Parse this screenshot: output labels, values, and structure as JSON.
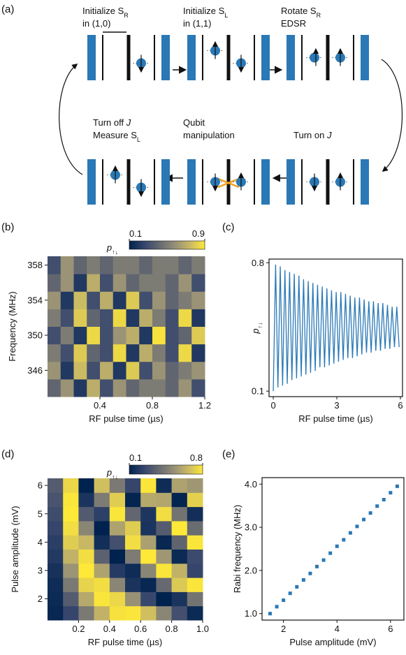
{
  "figure_a": {
    "panel_label": "(a)",
    "steps": [
      {
        "lines": [
          [
            {
              "text": "Initialize S"
            },
            {
              "sub": "R"
            }
          ],
          [
            {
              "text": "in (1,0)"
            }
          ]
        ]
      },
      {
        "lines": [
          [
            {
              "text": "Initialize S"
            },
            {
              "sub": "L"
            }
          ],
          [
            {
              "text": "in (1,1)"
            }
          ]
        ]
      },
      {
        "lines": [
          [
            {
              "text": "Rotate S"
            },
            {
              "sub": "R"
            }
          ],
          [
            {
              "text": "EDSR"
            }
          ]
        ]
      },
      {
        "lines": [
          [
            {
              "text": "Turn on "
            },
            {
              "italic": "J"
            }
          ]
        ]
      },
      {
        "lines": [
          [
            {
              "text": "Qubit"
            }
          ],
          [
            {
              "text": "manipulation"
            }
          ]
        ]
      },
      {
        "lines": [
          [
            {
              "text": "Turn off "
            },
            {
              "italic": "J"
            }
          ],
          [
            {
              "text": "Measure S"
            },
            {
              "sub": "L"
            }
          ]
        ]
      }
    ]
  },
  "chart_data": [
    {
      "type": "heatmap",
      "panel_label": "(b)",
      "xlabel": "RF pulse time (µs)",
      "ylabel": "Frequency (MHz)",
      "x": [
        0.05,
        0.15,
        0.25,
        0.35,
        0.45,
        0.55,
        0.65,
        0.75,
        0.85,
        0.95,
        1.05,
        1.15
      ],
      "y": [
        344,
        346,
        348,
        350,
        352,
        354,
        356,
        358
      ],
      "z": [
        [
          0.4,
          0.6,
          0.2,
          0.7,
          0.3,
          0.6,
          0.4,
          0.5,
          0.5,
          0.4,
          0.6,
          0.3
        ],
        [
          0.6,
          0.2,
          0.75,
          0.3,
          0.7,
          0.2,
          0.8,
          0.3,
          0.6,
          0.4,
          0.5,
          0.6
        ],
        [
          0.5,
          0.3,
          0.8,
          0.4,
          0.3,
          0.85,
          0.2,
          0.7,
          0.5,
          0.3,
          0.85,
          0.2
        ],
        [
          0.3,
          0.5,
          0.2,
          0.85,
          0.3,
          0.6,
          0.7,
          0.2,
          0.88,
          0.3,
          0.4,
          0.8
        ],
        [
          0.5,
          0.3,
          0.8,
          0.4,
          0.3,
          0.85,
          0.2,
          0.7,
          0.5,
          0.3,
          0.85,
          0.2
        ],
        [
          0.6,
          0.2,
          0.75,
          0.3,
          0.7,
          0.2,
          0.8,
          0.3,
          0.6,
          0.4,
          0.5,
          0.6
        ],
        [
          0.4,
          0.6,
          0.2,
          0.7,
          0.3,
          0.6,
          0.4,
          0.5,
          0.5,
          0.4,
          0.6,
          0.3
        ],
        [
          0.3,
          0.6,
          0.4,
          0.5,
          0.4,
          0.5,
          0.5,
          0.4,
          0.5,
          0.5,
          0.4,
          0.5
        ]
      ],
      "xlim": [
        0,
        1.2
      ],
      "ylim": [
        343,
        359
      ],
      "xticks": [
        0.4,
        0.8,
        1.2
      ],
      "yticks": [
        346,
        350,
        354,
        358
      ],
      "colormap": [
        "#00224e",
        "#35456c",
        "#666970",
        "#948e77",
        "#c8b866",
        "#fee838"
      ],
      "colorbar": {
        "label": {
          "text": "p",
          "sub": "↑↓"
        },
        "clim": [
          0.1,
          0.9
        ],
        "ticks": [
          0.1,
          0.9
        ]
      }
    },
    {
      "type": "line",
      "panel_label": "(c)",
      "xlabel": "RF pulse time (µs)",
      "ylabel": {
        "text": "p",
        "sub": "↑↓"
      },
      "color": "#2a78b5",
      "x": [
        0,
        0.11,
        0.22,
        0.33,
        0.44,
        0.55,
        0.66,
        0.77,
        0.88,
        0.99,
        1.1,
        1.21,
        1.32,
        1.43,
        1.54,
        1.65,
        1.76,
        1.87,
        1.98,
        2.09,
        2.2,
        2.31,
        2.42,
        2.53,
        2.64,
        2.75,
        2.86,
        2.97,
        3.08,
        3.19,
        3.3,
        3.41,
        3.52,
        3.63,
        3.74,
        3.85,
        3.96,
        4.07,
        4.18,
        4.29,
        4.4,
        4.51,
        4.62,
        4.73,
        4.84,
        4.95,
        5.06,
        5.17,
        5.28,
        5.39,
        5.5,
        5.61,
        5.72,
        5.83,
        5.94
      ],
      "values": [
        0.1,
        0.79,
        0.12,
        0.78,
        0.13,
        0.76,
        0.14,
        0.75,
        0.16,
        0.74,
        0.17,
        0.73,
        0.18,
        0.71,
        0.19,
        0.7,
        0.2,
        0.69,
        0.21,
        0.68,
        0.23,
        0.67,
        0.23,
        0.66,
        0.24,
        0.65,
        0.25,
        0.64,
        0.26,
        0.64,
        0.27,
        0.63,
        0.28,
        0.62,
        0.28,
        0.61,
        0.29,
        0.61,
        0.3,
        0.6,
        0.31,
        0.59,
        0.31,
        0.59,
        0.32,
        0.58,
        0.32,
        0.58,
        0.33,
        0.57,
        0.33,
        0.56,
        0.34,
        0.56,
        0.34
      ],
      "xlim": [
        -0.2,
        6.1
      ],
      "ylim": [
        0.07,
        0.82
      ],
      "xticks": [
        0,
        3,
        6
      ],
      "yticks": [
        0.1,
        0.8
      ]
    },
    {
      "type": "heatmap",
      "panel_label": "(d)",
      "xlabel": "RF pulse time (µs)",
      "ylabel": "Pulse amplitude (mV)",
      "x": [
        0.05,
        0.15,
        0.25,
        0.35,
        0.45,
        0.55,
        0.65,
        0.75,
        0.85,
        0.95
      ],
      "y": [
        1.5,
        2,
        2.5,
        3,
        3.5,
        4,
        4.5,
        5,
        5.5,
        6
      ],
      "z": [
        [
          0.12,
          0.24,
          0.44,
          0.64,
          0.78,
          0.79,
          0.68,
          0.49,
          0.28,
          0.13
        ],
        [
          0.13,
          0.33,
          0.61,
          0.79,
          0.75,
          0.53,
          0.25,
          0.1,
          0.17,
          0.42
        ],
        [
          0.14,
          0.44,
          0.74,
          0.77,
          0.49,
          0.17,
          0.12,
          0.38,
          0.71,
          0.79
        ],
        [
          0.16,
          0.54,
          0.8,
          0.59,
          0.2,
          0.14,
          0.49,
          0.79,
          0.64,
          0.24
        ],
        [
          0.19,
          0.64,
          0.77,
          0.35,
          0.1,
          0.45,
          0.8,
          0.55,
          0.13,
          0.26
        ],
        [
          0.21,
          0.72,
          0.66,
          0.15,
          0.28,
          0.77,
          0.58,
          0.12,
          0.36,
          0.79
        ],
        [
          0.24,
          0.77,
          0.49,
          0.1,
          0.59,
          0.72,
          0.17,
          0.33,
          0.8,
          0.39
        ],
        [
          0.27,
          0.8,
          0.32,
          0.22,
          0.79,
          0.37,
          0.18,
          0.77,
          0.42,
          0.15
        ],
        [
          0.3,
          0.79,
          0.17,
          0.45,
          0.72,
          0.11,
          0.61,
          0.6,
          0.11,
          0.73
        ],
        [
          0.33,
          0.75,
          0.1,
          0.68,
          0.44,
          0.24,
          0.79,
          0.14,
          0.59,
          0.55
        ]
      ],
      "xlim": [
        0,
        1.0
      ],
      "ylim": [
        1.25,
        6.25
      ],
      "xticks": [
        0.2,
        0.4,
        0.6,
        0.8,
        {
          "value": 1.0,
          "label": "1.0"
        }
      ],
      "yticks": [
        2,
        3,
        4,
        5,
        6
      ],
      "colormap": [
        "#00224e",
        "#35456c",
        "#666970",
        "#948e77",
        "#c8b866",
        "#fee838"
      ],
      "colorbar": {
        "label": {
          "text": "p",
          "sub": "↑↓"
        },
        "clim": [
          0.1,
          0.8
        ],
        "ticks": [
          0.1,
          0.8
        ]
      }
    },
    {
      "type": "scatter",
      "panel_label": "(e)",
      "xlabel": "Pulse amplitude (mV)",
      "ylabel": "Rabi frequency (MHz)",
      "color": "#2a78b5",
      "x": [
        1.5,
        1.75,
        2.0,
        2.25,
        2.5,
        2.75,
        3.0,
        3.25,
        3.5,
        3.75,
        4.0,
        4.25,
        4.5,
        4.75,
        5.0,
        5.25,
        5.5,
        5.75,
        6.0,
        6.25
      ],
      "values": [
        1.0,
        1.16,
        1.31,
        1.47,
        1.62,
        1.78,
        1.93,
        2.09,
        2.24,
        2.4,
        2.56,
        2.71,
        2.87,
        3.02,
        3.18,
        3.33,
        3.49,
        3.64,
        3.8,
        3.95
      ],
      "xlim": [
        1.2,
        6.5
      ],
      "ylim": [
        0.85,
        4.15
      ],
      "xticks": [
        2,
        4,
        6
      ],
      "yticks": [
        {
          "value": 1,
          "label": "1.0"
        },
        {
          "value": 2,
          "label": "2.0"
        },
        {
          "value": 3,
          "label": "3.0"
        },
        {
          "value": 4,
          "label": "4.0"
        }
      ]
    }
  ]
}
